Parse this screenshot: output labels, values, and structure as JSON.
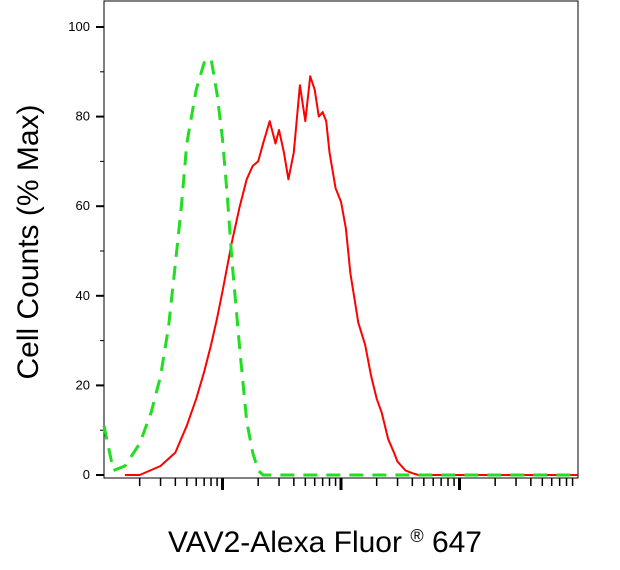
{
  "chart_data": {
    "type": "line",
    "title": "",
    "xlabel": "VAV2-Alexa Fluor",
    "xlabel_superscript": "®",
    "xlabel_suffix": " 647",
    "ylabel": "Cell Counts (% Max)",
    "x_scale": "log",
    "xlim": [
      0.1,
      1000
    ],
    "ylim": [
      0,
      100
    ],
    "y_ticks": [
      0,
      20,
      40,
      60,
      80,
      100
    ],
    "y_tick_labels": [
      "0",
      "20",
      "40",
      "60",
      "80",
      "100"
    ],
    "x_major_ticks": [
      1,
      10,
      100
    ],
    "grid": false,
    "legend": "none",
    "series": [
      {
        "color": "#ff0000",
        "dash": "solid",
        "x": [
          0.15,
          0.2,
          0.3,
          0.4,
          0.5,
          0.6,
          0.7,
          0.8,
          0.9,
          1,
          1.2,
          1.4,
          1.6,
          1.8,
          2,
          2.2,
          2.5,
          2.8,
          3,
          3.3,
          3.6,
          4,
          4.5,
          5,
          5.5,
          6,
          6.5,
          7,
          7.5,
          8,
          9,
          10,
          11,
          12,
          14,
          16,
          18,
          20,
          22,
          25,
          28,
          30,
          35,
          40,
          45,
          50,
          55,
          60,
          70,
          80,
          100,
          120,
          150,
          200,
          300,
          1000
        ],
        "y": [
          0,
          0,
          2,
          5,
          11,
          17,
          23,
          29,
          35,
          41,
          52,
          60,
          66,
          69,
          70,
          74,
          79,
          74,
          77,
          72,
          66,
          72,
          87,
          79,
          89,
          86,
          80,
          81,
          79,
          72,
          64,
          61,
          55,
          45,
          34,
          29,
          22,
          17,
          14,
          8,
          5,
          3,
          1,
          0.4,
          0,
          0,
          0,
          0,
          0,
          0,
          0,
          0,
          0,
          0,
          0,
          0
        ]
      },
      {
        "color": "#22dd22",
        "dash": "dashed",
        "x": [
          0.1,
          0.12,
          0.15,
          0.2,
          0.25,
          0.3,
          0.35,
          0.4,
          0.45,
          0.5,
          0.6,
          0.7,
          0.8,
          0.9,
          1,
          1.1,
          1.2,
          1.4,
          1.6,
          1.8,
          2,
          2.2,
          2.5,
          3,
          4,
          5,
          7,
          10,
          20,
          50,
          100,
          1000
        ],
        "y": [
          11,
          1,
          2,
          7,
          14,
          22,
          33,
          47,
          60,
          74,
          86,
          92,
          93,
          85,
          75,
          62,
          48,
          28,
          12,
          5,
          1,
          0,
          0,
          0,
          0,
          0,
          0,
          0,
          0,
          0,
          0,
          0
        ]
      }
    ]
  }
}
